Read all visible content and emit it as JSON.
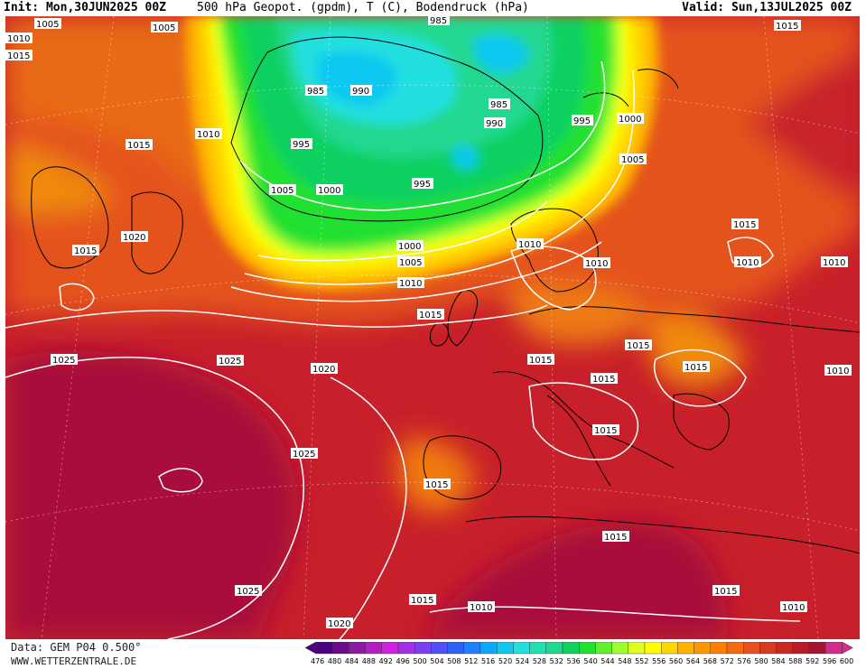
{
  "header": {
    "init": "Init: Mon,30JUN2025 00Z",
    "title": "500 hPa Geopot. (gpdm), T (C), Bodendruck (hPa)",
    "valid": "Valid: Sun,13JUL2025 00Z"
  },
  "footer": {
    "source": "Data: GEM P04 0.500°",
    "site": "WWW.WETTERZENTRALE.DE"
  },
  "legend": {
    "values": [
      "476",
      "480",
      "484",
      "488",
      "492",
      "496",
      "500",
      "504",
      "508",
      "512",
      "516",
      "520",
      "524",
      "528",
      "532",
      "536",
      "540",
      "544",
      "548",
      "552",
      "556",
      "560",
      "564",
      "568",
      "572",
      "576",
      "580",
      "584",
      "588",
      "592",
      "596",
      "600"
    ],
    "colors": [
      "#4b0082",
      "#6a0a8f",
      "#8a1aa0",
      "#b01fc0",
      "#d020e0",
      "#a030e8",
      "#7a40f0",
      "#5050f5",
      "#3060f5",
      "#2080ff",
      "#10a8ff",
      "#10c8f0",
      "#20e0e0",
      "#20e0b0",
      "#20d890",
      "#10d060",
      "#20e030",
      "#60f030",
      "#a0ff30",
      "#e0ff20",
      "#ffff00",
      "#ffd700",
      "#ffb300",
      "#ff9800",
      "#ff7f00",
      "#f46a10",
      "#e85020",
      "#d83a20",
      "#c82a20",
      "#b81c28",
      "#a81430",
      "#d42a8a"
    ]
  },
  "isobars": [
    {
      "value": "1005"
    },
    {
      "value": "1005"
    },
    {
      "value": "1010"
    },
    {
      "value": "1015"
    },
    {
      "value": "985"
    },
    {
      "value": "985"
    },
    {
      "value": "990"
    },
    {
      "value": "985"
    },
    {
      "value": "990"
    },
    {
      "value": "995"
    },
    {
      "value": "1000"
    },
    {
      "value": "1015"
    },
    {
      "value": "1010"
    },
    {
      "value": "995"
    },
    {
      "value": "1005"
    },
    {
      "value": "1005"
    },
    {
      "value": "1000"
    },
    {
      "value": "995"
    },
    {
      "value": "1015"
    },
    {
      "value": "1020"
    },
    {
      "value": "1015"
    },
    {
      "value": "1000"
    },
    {
      "value": "1005"
    },
    {
      "value": "1010"
    },
    {
      "value": "1010"
    },
    {
      "value": "1010"
    },
    {
      "value": "1010"
    },
    {
      "value": "1010"
    },
    {
      "value": "1015"
    },
    {
      "value": "1025"
    },
    {
      "value": "1025"
    },
    {
      "value": "1020"
    },
    {
      "value": "1015"
    },
    {
      "value": "1015"
    },
    {
      "value": "1015"
    },
    {
      "value": "1015"
    },
    {
      "value": "1010"
    },
    {
      "value": "1025"
    },
    {
      "value": "1015"
    },
    {
      "value": "1015"
    },
    {
      "value": "1015"
    },
    {
      "value": "1025"
    },
    {
      "value": "1015"
    },
    {
      "value": "1010"
    },
    {
      "value": "1015"
    },
    {
      "value": "1010"
    },
    {
      "value": "1020"
    },
    {
      "value": "1015"
    }
  ]
}
